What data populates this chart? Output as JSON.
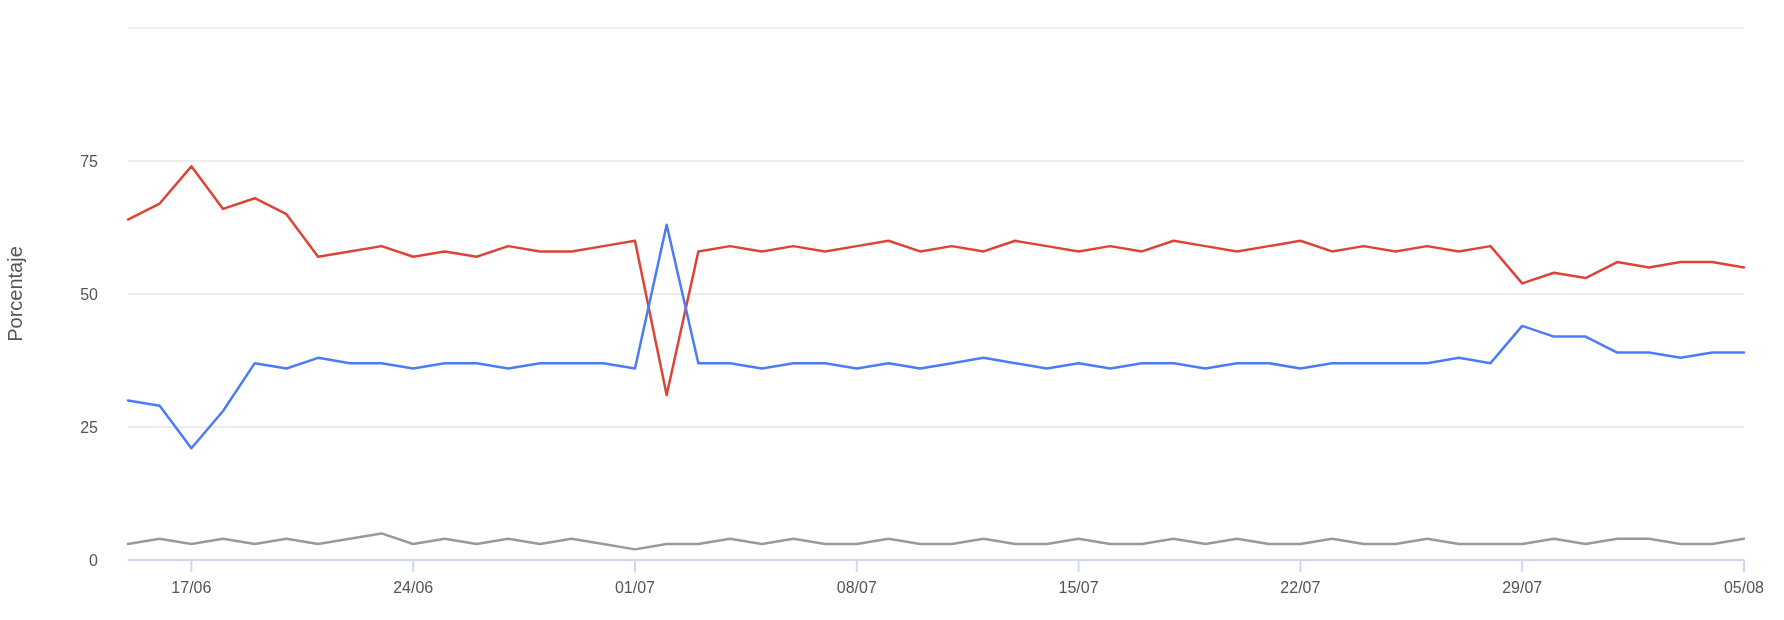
{
  "chart_data": {
    "type": "line",
    "ylabel": "Porcentaje",
    "x": [
      "--06-15",
      "--06-16",
      "--06-17",
      "--06-18",
      "--06-19",
      "--06-20",
      "--06-21",
      "--06-22",
      "--06-23",
      "--06-24",
      "--06-25",
      "--06-26",
      "--06-27",
      "--06-28",
      "--06-29",
      "--06-30",
      "--07-01",
      "--07-02",
      "--07-03",
      "--07-04",
      "--07-05",
      "--07-06",
      "--07-07",
      "--07-08",
      "--07-09",
      "--07-10",
      "--07-11",
      "--07-12",
      "--07-13",
      "--07-14",
      "--07-15",
      "--07-16",
      "--07-17",
      "--07-18",
      "--07-19",
      "--07-20",
      "--07-21",
      "--07-22",
      "--07-23",
      "--07-24",
      "--07-25",
      "--07-26",
      "--07-27",
      "--07-28",
      "--07-29",
      "--07-30",
      "--07-31",
      "--08-01",
      "--08-02",
      "--08-03",
      "--08-04",
      "--08-05"
    ],
    "series": [
      {
        "color": "#db4437",
        "values": [
          64,
          67,
          74,
          66,
          68,
          65,
          57,
          58,
          59,
          57,
          58,
          57,
          59,
          58,
          58,
          59,
          60,
          31,
          58,
          59,
          58,
          59,
          58,
          59,
          60,
          58,
          59,
          58,
          60,
          59,
          58,
          59,
          58,
          60,
          59,
          58,
          59,
          60,
          58,
          59,
          58,
          59,
          58,
          59,
          52,
          54,
          53,
          56,
          55,
          56,
          56,
          55
        ]
      },
      {
        "color": "#4c7cf3",
        "values": [
          30,
          29,
          21,
          28,
          37,
          36,
          38,
          37,
          37,
          36,
          37,
          37,
          36,
          37,
          37,
          37,
          36,
          63,
          37,
          37,
          36,
          37,
          37,
          36,
          37,
          36,
          37,
          38,
          37,
          36,
          37,
          36,
          37,
          37,
          36,
          37,
          37,
          36,
          37,
          37,
          37,
          37,
          38,
          37,
          44,
          42,
          42,
          39,
          39,
          38,
          39,
          39
        ]
      },
      {
        "color": "#999999",
        "values": [
          3,
          4,
          3,
          4,
          3,
          4,
          3,
          4,
          5,
          3,
          4,
          3,
          4,
          3,
          4,
          3,
          2,
          3,
          3,
          4,
          3,
          4,
          3,
          3,
          4,
          3,
          3,
          4,
          3,
          3,
          4,
          3,
          3,
          4,
          3,
          4,
          3,
          3,
          4,
          3,
          3,
          4,
          3,
          3,
          3,
          4,
          3,
          4,
          4,
          3,
          3,
          4
        ]
      }
    ],
    "xlim": [
      "--06-15",
      "--08-05"
    ],
    "xticks": [
      {
        "value": "--06-17",
        "label": "17/06"
      },
      {
        "value": "--06-24",
        "label": "24/06"
      },
      {
        "value": "--07-01",
        "label": "01/07"
      },
      {
        "value": "--07-08",
        "label": "08/07"
      },
      {
        "value": "--07-15",
        "label": "15/07"
      },
      {
        "value": "--07-22",
        "label": "22/07"
      },
      {
        "value": "--07-29",
        "label": "29/07"
      },
      {
        "value": "--08-05",
        "label": "05/08"
      }
    ],
    "ylim": [
      0,
      100
    ],
    "yticks": [
      0,
      25,
      50,
      75,
      {
        "value": 100,
        "label": null
      }
    ],
    "grid": "y",
    "marker": "none",
    "line_style": "solid"
  }
}
